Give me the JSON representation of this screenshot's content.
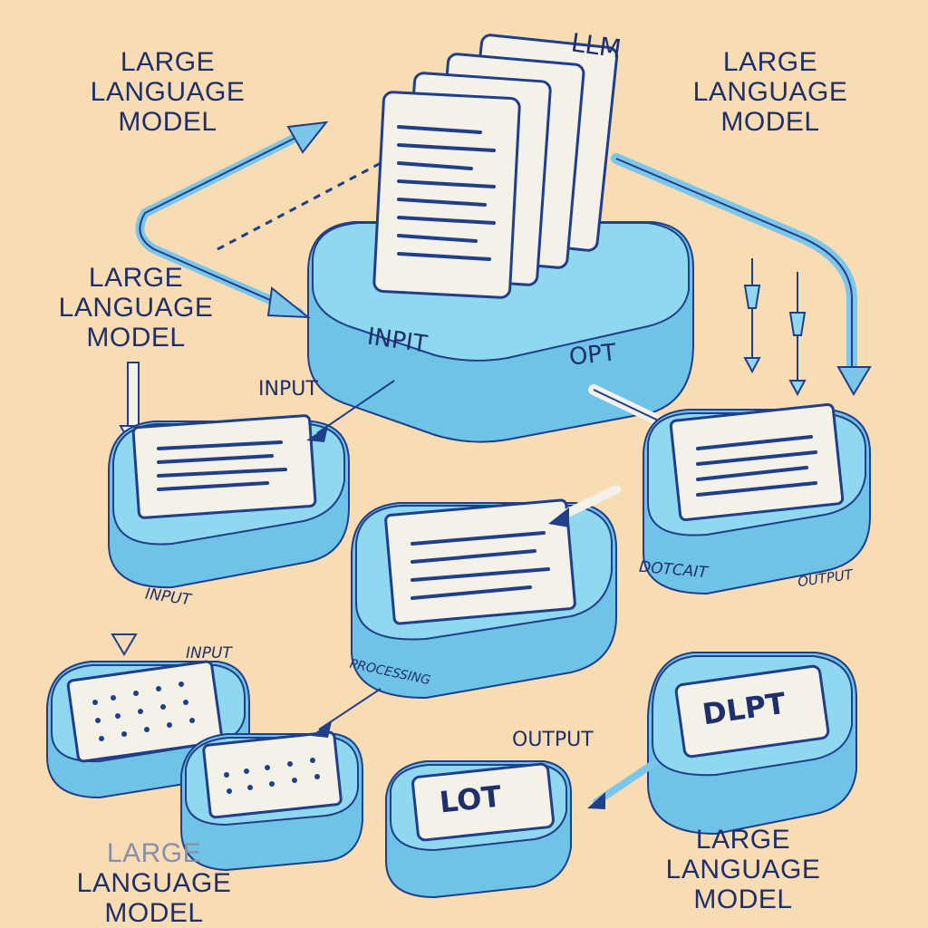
{
  "header": {
    "llm": "LLM"
  },
  "labels": {
    "top_left": [
      "LARGE",
      "LANGUAGE",
      "MODEL"
    ],
    "top_right": [
      "LARGE",
      "LANGUAGE",
      "MODEL"
    ],
    "mid_left": [
      "LARGE",
      "LANGUAGE",
      "MODEL"
    ],
    "bottom_left": [
      "LARGE",
      "LANGUAGE",
      "MODEL"
    ],
    "bottom_right": [
      "LARGE",
      "LANGUAGE",
      "MODEL"
    ]
  },
  "stage_labels": {
    "central_input": "INPIT",
    "central_output": "OPT",
    "input_arrow": "INPUT",
    "left_input": "INPUT",
    "mid_input": "INPUT",
    "processing": "PROCESSING",
    "right_output_a": "DOTCAIT",
    "right_output_b": "OUTPUT",
    "output": "OUTPUT"
  },
  "boxes": {
    "bottom_right_box": "DLPT",
    "bottom_center_box": "LOT"
  },
  "colors": {
    "background": "#f7dcb4",
    "platform": "#8fd8f0",
    "platform_side": "#6fc3e6",
    "outline": "#1f3f8a",
    "paper": "#f4f1e8",
    "arrow": "#7cc6ea"
  }
}
